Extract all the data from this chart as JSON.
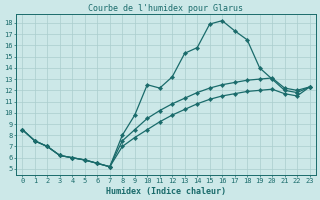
{
  "title": "Courbe de l'humidex pour Glarus",
  "xlabel": "Humidex (Indice chaleur)",
  "xlim": [
    -0.5,
    23.5
  ],
  "ylim": [
    4.5,
    18.8
  ],
  "xticks": [
    0,
    1,
    2,
    3,
    4,
    5,
    6,
    7,
    8,
    9,
    10,
    11,
    12,
    13,
    14,
    15,
    16,
    17,
    18,
    19,
    20,
    21,
    22,
    23
  ],
  "yticks": [
    5,
    6,
    7,
    8,
    9,
    10,
    11,
    12,
    13,
    14,
    15,
    16,
    17,
    18
  ],
  "bg_color": "#cce8e8",
  "line_color": "#1a6b6b",
  "grid_color": "#aacece",
  "lines": [
    {
      "x": [
        0,
        1,
        2,
        3,
        4,
        5,
        6,
        7,
        8,
        9,
        10,
        11,
        12,
        13,
        14,
        15,
        16,
        17,
        18,
        19,
        20,
        21,
        22,
        23
      ],
      "y": [
        8.5,
        7.5,
        7.0,
        6.2,
        6.0,
        5.8,
        5.5,
        5.2,
        8.0,
        9.8,
        12.5,
        12.2,
        13.2,
        15.3,
        15.8,
        17.9,
        18.2,
        17.3,
        16.5,
        14.0,
        13.0,
        12.0,
        11.8,
        12.3
      ]
    },
    {
      "x": [
        0,
        1,
        2,
        3,
        4,
        5,
        6,
        7,
        8,
        9,
        10,
        11,
        12,
        13,
        14,
        15,
        16,
        17,
        18,
        19,
        20,
        21,
        22,
        23
      ],
      "y": [
        8.5,
        7.5,
        7.0,
        6.2,
        6.0,
        5.8,
        5.5,
        5.2,
        7.5,
        8.5,
        9.5,
        10.2,
        10.8,
        11.3,
        11.8,
        12.2,
        12.5,
        12.7,
        12.9,
        13.0,
        13.1,
        12.2,
        12.0,
        12.3
      ]
    },
    {
      "x": [
        0,
        1,
        2,
        3,
        4,
        5,
        6,
        7,
        8,
        9,
        10,
        11,
        12,
        13,
        14,
        15,
        16,
        17,
        18,
        19,
        20,
        21,
        22,
        23
      ],
      "y": [
        8.5,
        7.5,
        7.0,
        6.2,
        6.0,
        5.8,
        5.5,
        5.2,
        7.0,
        7.8,
        8.5,
        9.2,
        9.8,
        10.3,
        10.8,
        11.2,
        11.5,
        11.7,
        11.9,
        12.0,
        12.1,
        11.7,
        11.5,
        12.3
      ]
    }
  ],
  "title_fontsize": 6.0,
  "xlabel_fontsize": 6.0,
  "tick_fontsize": 5.0,
  "line_width": 0.9,
  "marker_size": 2.2
}
